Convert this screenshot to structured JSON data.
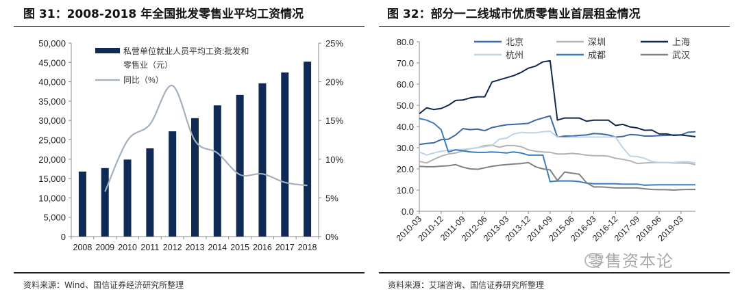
{
  "left": {
    "title": "图 31：2008-2018 年全国批发零售业平均工资情况",
    "source": "资料来源：Wind、国信证券经济研究所整理"
  },
  "right": {
    "title": "图 32：部分一二线城市优质零售业首层租金情况",
    "source": "资料来源：艾瑞咨询、国信证券研究所整理",
    "watermark": "零售资本论"
  },
  "chart_data": [
    {
      "type": "bar",
      "categories": [
        "2008",
        "2009",
        "2010",
        "2011",
        "2012",
        "2013",
        "2014",
        "2015",
        "2016",
        "2017",
        "2018"
      ],
      "series": [
        {
          "name": "私营单位就业人员平均工资:批发和零售业（元）",
          "kind": "bar",
          "axis": "left",
          "color": "#0e2a55",
          "values": [
            16800,
            17700,
            19900,
            22800,
            27200,
            30600,
            33900,
            36600,
            39600,
            42400,
            45200
          ]
        },
        {
          "name": "同比（%）",
          "kind": "line",
          "axis": "right",
          "color": "#a4afbd",
          "values": [
            null,
            5.8,
            12.4,
            14.5,
            19.5,
            12.4,
            10.8,
            8.0,
            8.1,
            7.0,
            6.6
          ]
        }
      ],
      "ylim": [
        0,
        50000
      ],
      "yticks": [
        "0",
        "5,000",
        "10,000",
        "15,000",
        "20,000",
        "25,000",
        "30,000",
        "35,000",
        "40,000",
        "45,000",
        "50,000"
      ],
      "y2lim": [
        0,
        25
      ],
      "y2ticks": [
        "0%",
        "5%",
        "10%",
        "15%",
        "20%",
        "25%"
      ],
      "legend": "top-left",
      "grid": false
    },
    {
      "type": "line",
      "x": [
        "2010-03",
        "2010-06",
        "2010-09",
        "2010-12",
        "2011-03",
        "2011-06",
        "2011-09",
        "2011-12",
        "2012-03",
        "2012-06",
        "2012-09",
        "2012-12",
        "2013-03",
        "2013-06",
        "2013-09",
        "2013-12",
        "2014-03",
        "2014-06",
        "2014-09",
        "2014-12",
        "2015-03",
        "2015-06",
        "2015-09",
        "2015-12",
        "2016-03",
        "2016-06",
        "2016-09",
        "2016-12",
        "2017-03",
        "2017-06",
        "2017-09",
        "2017-12",
        "2018-03",
        "2018-06",
        "2018-09",
        "2018-12",
        "2019-03",
        "2019-06",
        "2019-09"
      ],
      "xticks": [
        "2010-03",
        "2010-12",
        "2011-09",
        "2012-06",
        "2013-03",
        "2013-12",
        "2014-09",
        "2015-06",
        "2016-03",
        "2016-12",
        "2017-09",
        "2018-06",
        "2019-03"
      ],
      "ylim": [
        0,
        80
      ],
      "yticks": [
        "0.0",
        "10.0",
        "20.0",
        "30.0",
        "40.0",
        "50.0",
        "60.0",
        "70.0",
        "80.0"
      ],
      "legend": "top",
      "grid": false,
      "series": [
        {
          "name": "北京",
          "color": "#3a68a6",
          "values": [
            31.5,
            32,
            32.3,
            33.8,
            34,
            36,
            39,
            38.5,
            38.8,
            38,
            39.5,
            40.2,
            40.8,
            41,
            41.2,
            41.5,
            43,
            44,
            45,
            35,
            35.5,
            35.5,
            35.8,
            36,
            36.7,
            36.5,
            36,
            35,
            35.3,
            36.2,
            36,
            35.5,
            35.5,
            35.7,
            35.8,
            36,
            36,
            37.3,
            37.5
          ]
        },
        {
          "name": "深圳",
          "color": "#b3b3b3",
          "values": [
            23.5,
            22.8,
            24.5,
            26,
            27,
            27.5,
            28.5,
            29.5,
            30,
            31,
            31.2,
            30.2,
            31,
            31,
            30.5,
            29,
            28.3,
            28,
            27.8,
            27,
            27,
            27.3,
            27,
            26.5,
            26.2,
            26.2,
            26,
            25,
            24.5,
            23.8,
            22.5,
            22.8,
            23,
            23,
            23,
            22.8,
            22.8,
            22.7,
            22
          ]
        },
        {
          "name": "上海",
          "color": "#10284e",
          "values": [
            46,
            48.8,
            48,
            48.5,
            50,
            52.3,
            52.5,
            53.5,
            54,
            54,
            61,
            62,
            63,
            64,
            65.5,
            67.5,
            68.5,
            70.5,
            71,
            43,
            44,
            44,
            44,
            42.5,
            43,
            43,
            43,
            40.5,
            41,
            39.8,
            39.3,
            38.2,
            38.3,
            36.5,
            36.5,
            35.8,
            36,
            35.6,
            35.2
          ]
        },
        {
          "name": "杭州",
          "color": "#bfd2ea",
          "values": [
            28,
            26.5,
            27.5,
            28.3,
            28.8,
            29,
            29.2,
            29.5,
            30,
            30.5,
            31,
            34,
            34.5,
            36.5,
            37.2,
            37,
            37,
            37.5,
            37.8,
            35,
            34.8,
            35,
            35,
            35,
            35,
            35,
            35,
            35,
            30,
            26,
            25.8,
            25,
            23.5,
            23,
            23,
            23,
            23.3,
            23.3,
            22.8
          ]
        },
        {
          "name": "成都",
          "color": "#3b7cc0",
          "values": [
            43.8,
            43,
            41.5,
            38.5,
            28,
            29,
            28.5,
            28,
            27.8,
            27.8,
            28,
            27.8,
            27.5,
            28,
            27.5,
            26.5,
            26.5,
            26.5,
            14,
            14.3,
            14.3,
            14.3,
            14,
            13.3,
            13,
            13,
            13,
            13,
            12.8,
            12.8,
            12.8,
            12.3,
            12.4,
            12.5,
            12.5,
            12.5,
            12.5,
            12.5,
            12.5
          ]
        },
        {
          "name": "武汉",
          "color": "#808080",
          "values": [
            21.2,
            21,
            21,
            21.3,
            21.5,
            22,
            20.8,
            20,
            19.8,
            20.5,
            21.2,
            21.7,
            22,
            22.3,
            22.5,
            23,
            21,
            20,
            19.5,
            14.5,
            18.5,
            18,
            17.5,
            13.5,
            11.5,
            11.5,
            11.3,
            11,
            11,
            11,
            11,
            10.6,
            10.3,
            10.2,
            10.2,
            10,
            10.2,
            10.3,
            10.3
          ]
        }
      ]
    }
  ]
}
